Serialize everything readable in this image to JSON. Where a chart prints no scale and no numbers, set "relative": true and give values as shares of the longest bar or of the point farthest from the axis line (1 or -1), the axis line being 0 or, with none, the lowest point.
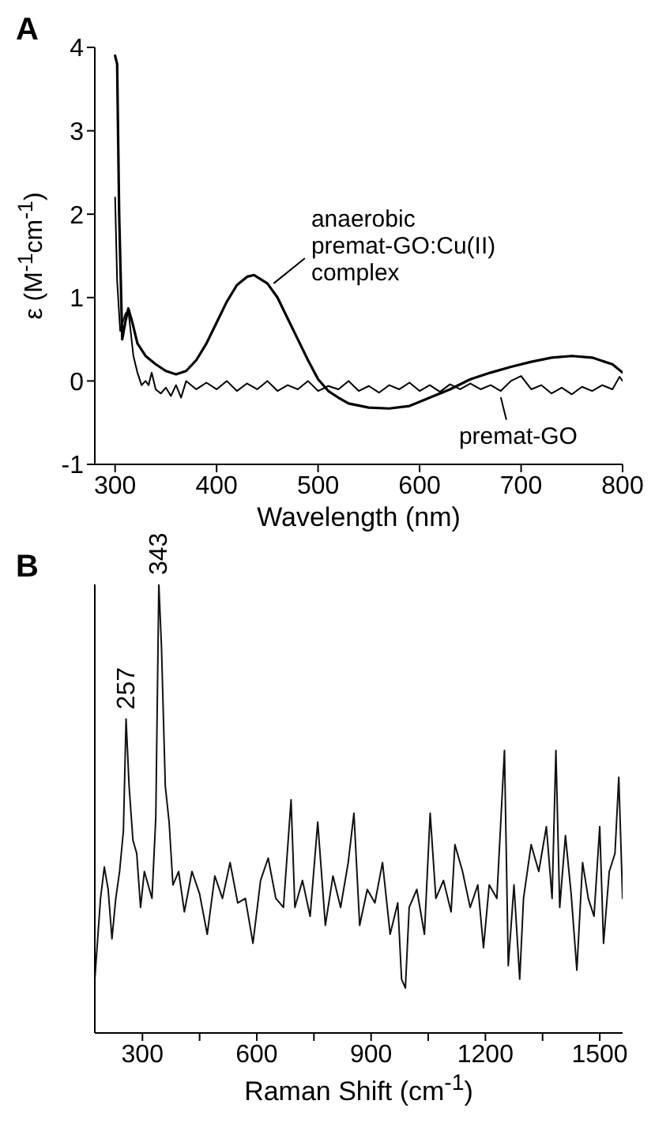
{
  "chart_data": [
    {
      "type": "line",
      "title": "A",
      "xlabel": "Wavelength (nm)",
      "ylabel": "ε (M$^{-1}$cm$^{-1}$)",
      "xlim": [
        280,
        800
      ],
      "xticks": [
        300,
        400,
        500,
        600,
        700,
        800
      ],
      "ylim": [
        -1,
        4
      ],
      "yticks": [
        -1,
        0,
        1,
        2,
        3,
        4
      ],
      "marker": "none",
      "line_style": "solid",
      "series": [
        {
          "name": "anaerobic\npremat-GO:Cu(II)\ncomplex",
          "color": "#000000",
          "x": [
            300,
            302,
            304,
            307,
            310,
            313,
            317,
            322,
            330,
            340,
            350,
            360,
            370,
            380,
            390,
            400,
            410,
            420,
            430,
            437,
            450,
            460,
            470,
            480,
            490,
            500,
            510,
            520,
            530,
            550,
            570,
            590,
            610,
            630,
            650,
            670,
            690,
            710,
            730,
            750,
            770,
            790,
            800
          ],
          "values": [
            3.9,
            3.8,
            2.0,
            0.5,
            0.7,
            0.87,
            0.7,
            0.45,
            0.3,
            0.2,
            0.12,
            0.08,
            0.12,
            0.25,
            0.45,
            0.7,
            0.95,
            1.15,
            1.25,
            1.27,
            1.17,
            1.0,
            0.75,
            0.5,
            0.25,
            0.02,
            -0.12,
            -0.2,
            -0.27,
            -0.32,
            -0.33,
            -0.3,
            -0.2,
            -0.1,
            0.02,
            0.1,
            0.17,
            0.23,
            0.28,
            0.3,
            0.28,
            0.2,
            0.1
          ]
        },
        {
          "name": "premat-GO",
          "color": "#000000",
          "x": [
            300,
            302,
            305,
            310,
            313,
            318,
            322,
            326,
            330,
            333,
            336,
            340,
            345,
            350,
            355,
            360,
            365,
            370,
            380,
            390,
            400,
            410,
            420,
            430,
            440,
            450,
            460,
            470,
            480,
            490,
            500,
            510,
            520,
            530,
            540,
            550,
            560,
            570,
            580,
            590,
            600,
            610,
            620,
            630,
            640,
            650,
            660,
            670,
            680,
            690,
            700,
            710,
            720,
            730,
            740,
            750,
            760,
            770,
            780,
            790,
            797,
            800
          ],
          "values": [
            2.2,
            1.2,
            0.6,
            0.8,
            0.85,
            0.3,
            0.1,
            -0.05,
            0.0,
            -0.05,
            0.1,
            -0.1,
            -0.15,
            -0.08,
            -0.18,
            -0.05,
            -0.2,
            0.0,
            -0.1,
            -0.02,
            -0.1,
            0.0,
            -0.12,
            -0.03,
            -0.1,
            0.0,
            -0.12,
            -0.05,
            -0.1,
            0.0,
            -0.12,
            -0.06,
            -0.1,
            0.0,
            -0.12,
            -0.06,
            -0.14,
            -0.05,
            -0.1,
            -0.02,
            -0.12,
            -0.05,
            -0.13,
            -0.04,
            -0.1,
            -0.03,
            -0.1,
            -0.05,
            -0.12,
            0.0,
            0.06,
            -0.1,
            -0.05,
            -0.15,
            -0.08,
            -0.16,
            -0.07,
            -0.12,
            -0.05,
            -0.1,
            0.05,
            0.0
          ]
        }
      ]
    },
    {
      "type": "line",
      "title": "B",
      "xlabel": "Raman Shift (cm$^{-1}$)",
      "xlim": [
        175,
        1560
      ],
      "xticks": [
        300,
        {
          "value": 450,
          "label": null
        },
        600,
        {
          "value": 750,
          "label": null
        },
        900,
        {
          "value": 1050,
          "label": null
        },
        1200,
        {
          "value": 1350,
          "label": null
        },
        1500
      ],
      "relative": true,
      "marker": "none",
      "line_style": "solid",
      "annotations": [
        {
          "text": "257",
          "x": 257,
          "y": 0.7
        },
        {
          "text": "343",
          "x": 343,
          "y": 1.0
        }
      ],
      "series": [
        {
          "color": "#111111",
          "x": [
            175,
            190,
            200,
            210,
            220,
            230,
            240,
            250,
            257,
            265,
            275,
            285,
            295,
            305,
            315,
            325,
            335,
            343,
            350,
            360,
            370,
            380,
            395,
            410,
            430,
            450,
            470,
            490,
            510,
            530,
            550,
            570,
            590,
            610,
            630,
            650,
            670,
            690,
            700,
            720,
            740,
            760,
            780,
            800,
            820,
            840,
            855,
            870,
            890,
            910,
            930,
            950,
            970,
            980,
            990,
            1000,
            1020,
            1040,
            1055,
            1070,
            1090,
            1110,
            1120,
            1140,
            1160,
            1180,
            1195,
            1210,
            1230,
            1250,
            1260,
            1275,
            1290,
            1300,
            1320,
            1340,
            1360,
            1375,
            1385,
            1395,
            1410,
            1425,
            1440,
            1455,
            1470,
            1485,
            1500,
            1510,
            1525,
            1540,
            1550,
            1560
          ],
          "values": [
            0.12,
            0.3,
            0.37,
            0.32,
            0.21,
            0.3,
            0.36,
            0.45,
            0.7,
            0.55,
            0.43,
            0.4,
            0.28,
            0.36,
            0.33,
            0.3,
            0.48,
            1.0,
            0.86,
            0.55,
            0.47,
            0.33,
            0.36,
            0.27,
            0.36,
            0.31,
            0.22,
            0.35,
            0.3,
            0.38,
            0.29,
            0.3,
            0.2,
            0.34,
            0.39,
            0.3,
            0.28,
            0.52,
            0.28,
            0.34,
            0.26,
            0.47,
            0.24,
            0.35,
            0.28,
            0.38,
            0.49,
            0.24,
            0.32,
            0.29,
            0.38,
            0.22,
            0.29,
            0.12,
            0.1,
            0.28,
            0.32,
            0.22,
            0.49,
            0.3,
            0.34,
            0.27,
            0.42,
            0.36,
            0.28,
            0.33,
            0.19,
            0.33,
            0.3,
            0.63,
            0.15,
            0.33,
            0.12,
            0.3,
            0.42,
            0.36,
            0.46,
            0.3,
            0.63,
            0.28,
            0.44,
            0.31,
            0.14,
            0.38,
            0.3,
            0.26,
            0.46,
            0.2,
            0.36,
            0.4,
            0.57,
            0.3
          ]
        }
      ]
    }
  ]
}
